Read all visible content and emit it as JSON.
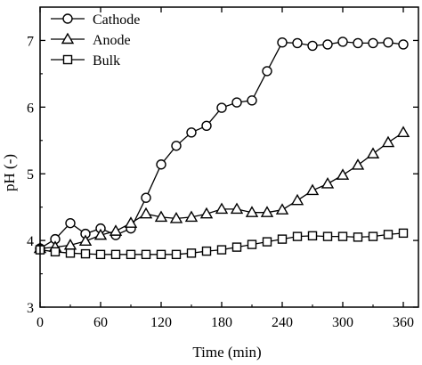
{
  "chart_data": {
    "type": "line",
    "title": "",
    "xlabel": "Time (min)",
    "ylabel": "pH (-)",
    "xlim": [
      0,
      375
    ],
    "ylim": [
      3,
      7.5
    ],
    "xticks": [
      0,
      60,
      120,
      180,
      240,
      300,
      360
    ],
    "yticks": [
      3,
      4,
      5,
      6,
      7
    ],
    "xtick_labels": [
      "0",
      "60",
      "120",
      "180",
      "240",
      "300",
      "360"
    ],
    "ytick_labels": [
      "3",
      "4",
      "5",
      "6",
      "7"
    ],
    "grid": false,
    "legend_position": "top-left",
    "series": [
      {
        "name": "Cathode",
        "marker": "circle",
        "x": [
          0,
          15,
          30,
          45,
          60,
          75,
          90,
          105,
          120,
          135,
          150,
          165,
          180,
          195,
          210,
          225,
          240,
          255,
          270,
          285,
          300,
          315,
          330,
          345,
          360
        ],
        "y": [
          3.88,
          4.02,
          4.26,
          4.1,
          4.18,
          4.08,
          4.18,
          4.64,
          5.14,
          5.42,
          5.62,
          5.72,
          5.99,
          6.07,
          6.1,
          6.54,
          6.97,
          6.96,
          6.92,
          6.94,
          6.98,
          6.96,
          6.96,
          6.97,
          6.94
        ]
      },
      {
        "name": "Anode",
        "marker": "triangle",
        "x": [
          0,
          15,
          30,
          45,
          60,
          75,
          90,
          105,
          120,
          135,
          150,
          165,
          180,
          195,
          210,
          225,
          240,
          255,
          270,
          285,
          300,
          315,
          330,
          345,
          360
        ],
        "y": [
          3.88,
          3.9,
          3.93,
          3.99,
          4.08,
          4.14,
          4.26,
          4.4,
          4.35,
          4.33,
          4.35,
          4.4,
          4.47,
          4.47,
          4.42,
          4.42,
          4.46,
          4.6,
          4.75,
          4.85,
          4.98,
          5.13,
          5.3,
          5.47,
          5.62
        ]
      },
      {
        "name": "Bulk",
        "marker": "square",
        "x": [
          0,
          15,
          30,
          45,
          60,
          75,
          90,
          105,
          120,
          135,
          150,
          165,
          180,
          195,
          210,
          225,
          240,
          255,
          270,
          285,
          300,
          315,
          330,
          345,
          360
        ],
        "y": [
          3.86,
          3.83,
          3.81,
          3.8,
          3.79,
          3.79,
          3.79,
          3.79,
          3.79,
          3.79,
          3.81,
          3.84,
          3.86,
          3.9,
          3.94,
          3.98,
          4.02,
          4.06,
          4.07,
          4.06,
          4.06,
          4.05,
          4.06,
          4.09,
          4.11
        ]
      }
    ]
  }
}
